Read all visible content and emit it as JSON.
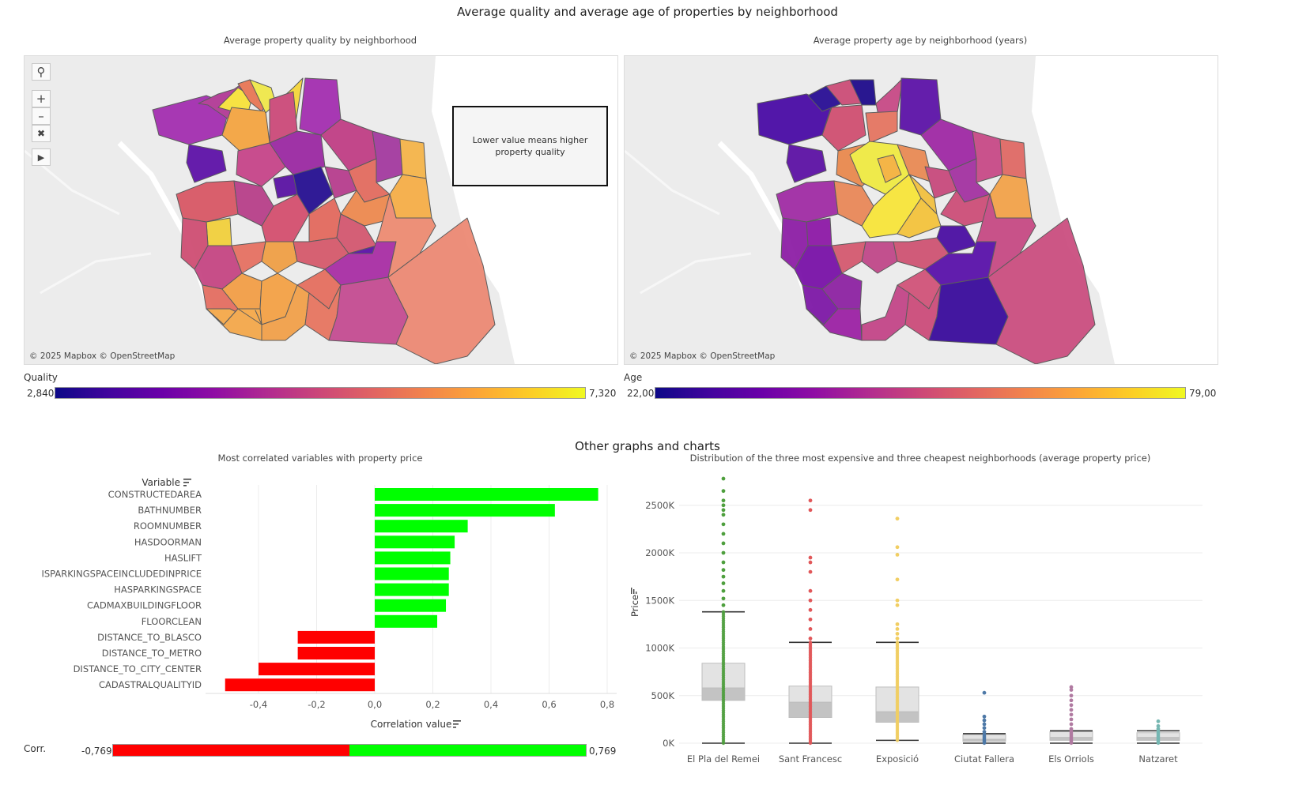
{
  "dashboard": {
    "title": "Average quality and average age of properties by neighborhood",
    "section2_title": "Other graphs and charts"
  },
  "map_quality": {
    "title": "Average property quality by neighborhood",
    "attribution": "© 2025 Mapbox © OpenStreetMap",
    "note": "Lower value means higher property quality",
    "legend_title": "Quality",
    "legend_min": "2,840",
    "legend_max": "7,320"
  },
  "map_age": {
    "title": "Average property age by neighborhood (years)",
    "attribution": "© 2025 Mapbox © OpenStreetMap",
    "legend_title": "Age",
    "legend_min": "22,00",
    "legend_max": "79,00"
  },
  "map_tools": [
    "search-icon",
    "zoom-in-icon",
    "zoom-out-icon",
    "clear-selection-icon",
    "play-icon"
  ],
  "colors": {
    "positive": "#00ff00",
    "negative": "#ff0000",
    "pla_del_remei": "#4e9f3d",
    "sant_francesc": "#e15759",
    "exposicio": "#f1ce63",
    "ciutat_fallera": "#4e79a7",
    "els_orriols": "#b07aa1",
    "natzaret": "#76b7b2"
  },
  "chart_data": [
    {
      "type": "bar",
      "orientation": "horizontal",
      "title": "Most correlated variables with property price",
      "category_header": "Variable",
      "xlabel": "Correlation value",
      "xlim": [
        -0.5,
        0.8
      ],
      "xticks": [
        "-0,4",
        "-0,2",
        "0,0",
        "0,2",
        "0,4",
        "0,6",
        "0,8"
      ],
      "categories": [
        "CONSTRUCTEDAREA",
        "BATHNUMBER",
        "ROOMNUMBER",
        "HASDOORMAN",
        "HASLIFT",
        "ISPARKINGSPACEINCLUDEDINPRICE",
        "HASPARKINGSPACE",
        "CADMAXBUILDINGFLOOR",
        "FLOORCLEAN",
        "DISTANCE_TO_BLASCO",
        "DISTANCE_TO_METRO",
        "DISTANCE_TO_CITY_CENTER",
        "CADASTRALQUALITYID"
      ],
      "values": [
        0.769,
        0.62,
        0.32,
        0.275,
        0.26,
        0.255,
        0.255,
        0.245,
        0.215,
        -0.265,
        -0.265,
        -0.4,
        -0.515
      ],
      "legend_title": "Corr.",
      "legend_min": "-0,769",
      "legend_max": "0,769"
    },
    {
      "type": "box",
      "title": "Distribution of the three most expensive and three cheapest neighborhoods (average property price)",
      "ylabel": "Price",
      "ylim": [
        0,
        2800
      ],
      "yticks": [
        "0K",
        "500K",
        "1000K",
        "1500K",
        "2000K",
        "2500K"
      ],
      "categories": [
        "El Pla del Remei",
        "Sant Francesc",
        "Exposició",
        "Ciutat Fallera",
        "Els Orriols",
        "Natzaret"
      ],
      "boxes": [
        {
          "min": 0,
          "q1": 450,
          "median": 580,
          "q3": 840,
          "max": 1380,
          "outliers": [
            1450,
            1520,
            1600,
            1680,
            1750,
            1820,
            1900,
            2000,
            2100,
            2200,
            2300,
            2400,
            2450,
            2500,
            2550,
            2650,
            2780
          ]
        },
        {
          "min": 0,
          "q1": 270,
          "median": 430,
          "q3": 600,
          "max": 1060,
          "outliers": [
            1100,
            1200,
            1300,
            1400,
            1500,
            1600,
            1800,
            1900,
            1950,
            2450,
            2550
          ]
        },
        {
          "min": 30,
          "q1": 220,
          "median": 330,
          "q3": 590,
          "max": 1060,
          "outliers": [
            1100,
            1150,
            1200,
            1250,
            1450,
            1500,
            1720,
            1980,
            2060,
            2360
          ]
        },
        {
          "min": 0,
          "q1": 20,
          "median": 40,
          "q3": 90,
          "max": 100,
          "outliers": [
            120,
            160,
            200,
            240,
            280,
            530
          ]
        },
        {
          "min": 0,
          "q1": 30,
          "median": 60,
          "q3": 120,
          "max": 130,
          "outliers": [
            150,
            200,
            250,
            300,
            350,
            400,
            450,
            500,
            560,
            590
          ]
        },
        {
          "min": 0,
          "q1": 30,
          "median": 60,
          "q3": 110,
          "max": 130,
          "outliers": [
            150,
            180,
            230
          ]
        }
      ]
    }
  ]
}
